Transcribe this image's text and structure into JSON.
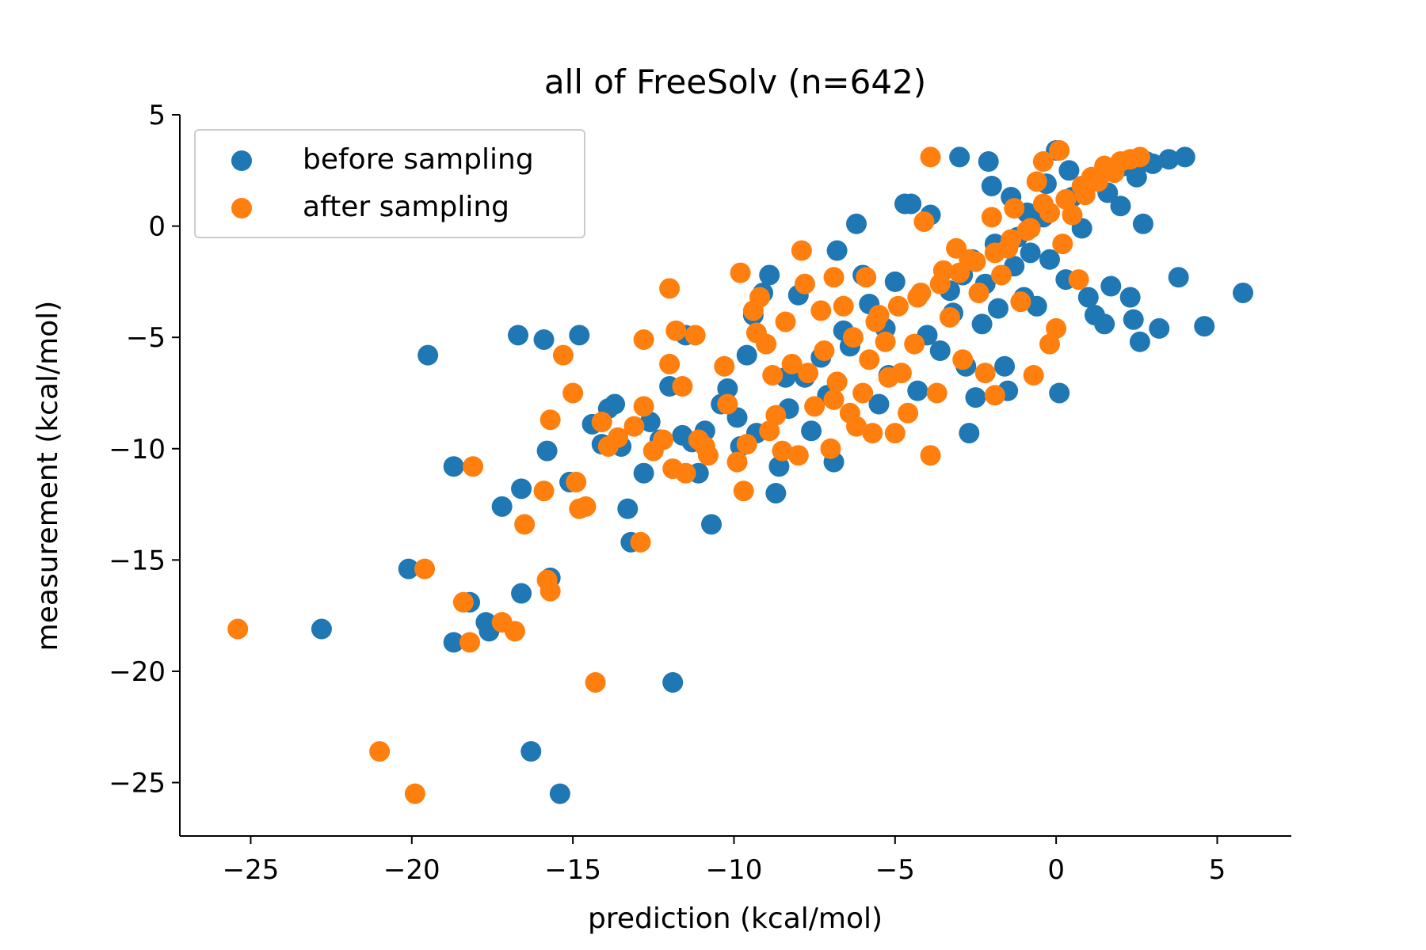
{
  "chart_data": {
    "type": "scatter",
    "title": "all of FreeSolv (n=642)",
    "xlabel": "prediction (kcal/mol)",
    "ylabel": "measurement (kcal/mol)",
    "xlim": [
      -27.2,
      7.3
    ],
    "ylim": [
      -27.4,
      5.0
    ],
    "xticks": [
      -25,
      -20,
      -15,
      -10,
      -5,
      0,
      5
    ],
    "yticks": [
      5,
      0,
      -5,
      -10,
      -15,
      -20,
      -25
    ],
    "xtick_labels": [
      "−25",
      "−20",
      "−15",
      "−10",
      "−5",
      "0",
      "5"
    ],
    "ytick_labels": [
      "5",
      "0",
      "−5",
      "−10",
      "−15",
      "−20",
      "−25"
    ],
    "grid": false,
    "legend_position": "top-left",
    "series": [
      {
        "name": "before sampling",
        "color": "#1f77b4",
        "points": [
          [
            -22.8,
            -18.1
          ],
          [
            -20.1,
            -15.4
          ],
          [
            -19.5,
            -5.8
          ],
          [
            -18.7,
            -10.8
          ],
          [
            -18.7,
            -18.7
          ],
          [
            -18.2,
            -16.9
          ],
          [
            -17.7,
            -17.8
          ],
          [
            -17.6,
            -18.2
          ],
          [
            -17.2,
            -12.6
          ],
          [
            -16.7,
            -4.9
          ],
          [
            -16.6,
            -11.8
          ],
          [
            -16.6,
            -16.5
          ],
          [
            -16.3,
            -23.6
          ],
          [
            -15.9,
            -5.1
          ],
          [
            -15.8,
            -10.1
          ],
          [
            -15.7,
            -15.8
          ],
          [
            -15.4,
            -25.5
          ],
          [
            -15.1,
            -11.5
          ],
          [
            -14.8,
            -4.9
          ],
          [
            -14.4,
            -8.9
          ],
          [
            -13.9,
            -8.2
          ],
          [
            -13.7,
            -8.0
          ],
          [
            -13.5,
            -9.9
          ],
          [
            -13.3,
            -12.7
          ],
          [
            -13.2,
            -14.2
          ],
          [
            -12.8,
            -11.1
          ],
          [
            -12.6,
            -8.8
          ],
          [
            -12.0,
            -7.2
          ],
          [
            -11.9,
            -20.5
          ],
          [
            -11.6,
            -9.4
          ],
          [
            -11.5,
            -4.9
          ],
          [
            -11.3,
            -9.7
          ],
          [
            -11.1,
            -11.1
          ],
          [
            -10.7,
            -13.4
          ],
          [
            -10.4,
            -8.0
          ],
          [
            -10.2,
            -7.3
          ],
          [
            -9.9,
            -8.6
          ],
          [
            -9.6,
            -5.8
          ],
          [
            -9.4,
            -4.0
          ],
          [
            -9.3,
            -9.3
          ],
          [
            -9.1,
            -3.0
          ],
          [
            -8.9,
            -2.2
          ],
          [
            -8.7,
            -12.0
          ],
          [
            -8.6,
            -10.8
          ],
          [
            -8.4,
            -6.8
          ],
          [
            -8.0,
            -3.1
          ],
          [
            -7.8,
            -6.8
          ],
          [
            -7.6,
            -9.2
          ],
          [
            -7.1,
            -7.6
          ],
          [
            -6.9,
            -10.6
          ],
          [
            -6.8,
            -1.1
          ],
          [
            -6.4,
            -5.4
          ],
          [
            -6.2,
            0.1
          ],
          [
            -6.0,
            -2.2
          ],
          [
            -5.8,
            -3.5
          ],
          [
            -5.5,
            -8.0
          ],
          [
            -5.3,
            -4.6
          ],
          [
            -5.2,
            -6.7
          ],
          [
            -5.0,
            -2.5
          ],
          [
            -4.7,
            1.0
          ],
          [
            -4.5,
            1.0
          ],
          [
            -4.3,
            -7.4
          ],
          [
            -4.0,
            -4.9
          ],
          [
            -3.9,
            0.5
          ],
          [
            -3.6,
            -5.6
          ],
          [
            -3.3,
            -2.9
          ],
          [
            -3.0,
            3.1
          ],
          [
            -2.8,
            -6.3
          ],
          [
            -2.7,
            -9.3
          ],
          [
            -2.5,
            -7.7
          ],
          [
            -2.3,
            -4.4
          ],
          [
            -2.1,
            2.9
          ],
          [
            -2.0,
            1.8
          ],
          [
            -1.8,
            -3.7
          ],
          [
            -1.6,
            -6.3
          ],
          [
            -1.5,
            -7.4
          ],
          [
            -1.4,
            1.3
          ],
          [
            -1.2,
            -0.5
          ],
          [
            -1.0,
            -3.2
          ],
          [
            -0.8,
            -1.2
          ],
          [
            -0.6,
            -3.6
          ],
          [
            -0.4,
            0.4
          ],
          [
            -0.2,
            -1.5
          ],
          [
            0.0,
            3.4
          ],
          [
            0.1,
            -7.5
          ],
          [
            0.3,
            -2.4
          ],
          [
            0.5,
            1.3
          ],
          [
            0.8,
            -0.1
          ],
          [
            1.0,
            -3.2
          ],
          [
            1.2,
            -4.0
          ],
          [
            1.5,
            -4.4
          ],
          [
            1.7,
            -2.7
          ],
          [
            2.0,
            0.9
          ],
          [
            2.3,
            -3.2
          ],
          [
            2.4,
            -4.2
          ],
          [
            2.5,
            2.2
          ],
          [
            2.6,
            -5.2
          ],
          [
            2.7,
            0.1
          ],
          [
            3.0,
            2.8
          ],
          [
            3.2,
            -4.6
          ],
          [
            3.5,
            3.0
          ],
          [
            3.8,
            -2.3
          ],
          [
            4.0,
            3.1
          ],
          [
            4.6,
            -4.5
          ],
          [
            5.8,
            -3.0
          ],
          [
            -3.2,
            -3.9
          ],
          [
            -2.9,
            -2.2
          ],
          [
            -2.6,
            -1.5
          ],
          [
            -2.2,
            -2.6
          ],
          [
            -1.9,
            -0.8
          ],
          [
            -1.3,
            -1.8
          ],
          [
            -0.9,
            0.6
          ],
          [
            -0.3,
            1.9
          ],
          [
            0.4,
            2.5
          ],
          [
            1.1,
            2.1
          ],
          [
            1.6,
            1.5
          ],
          [
            2.1,
            2.7
          ],
          [
            2.8,
            2.9
          ],
          [
            -6.6,
            -4.7
          ],
          [
            -7.3,
            -5.9
          ],
          [
            -8.3,
            -8.2
          ],
          [
            -9.8,
            -9.9
          ],
          [
            -10.9,
            -9.2
          ],
          [
            -12.3,
            -9.6
          ],
          [
            -14.1,
            -9.8
          ]
        ]
      },
      {
        "name": "after sampling",
        "color": "#ff7f0e",
        "points": [
          [
            -25.4,
            -18.1
          ],
          [
            -21.0,
            -23.6
          ],
          [
            -19.9,
            -25.5
          ],
          [
            -19.6,
            -15.4
          ],
          [
            -18.4,
            -16.9
          ],
          [
            -18.2,
            -18.7
          ],
          [
            -18.1,
            -10.8
          ],
          [
            -17.2,
            -17.8
          ],
          [
            -16.8,
            -18.2
          ],
          [
            -16.5,
            -13.4
          ],
          [
            -15.9,
            -11.9
          ],
          [
            -15.8,
            -15.9
          ],
          [
            -15.7,
            -8.7
          ],
          [
            -15.7,
            -16.4
          ],
          [
            -15.3,
            -5.8
          ],
          [
            -15.0,
            -7.5
          ],
          [
            -14.9,
            -11.5
          ],
          [
            -14.8,
            -12.7
          ],
          [
            -14.6,
            -12.6
          ],
          [
            -14.3,
            -20.5
          ],
          [
            -14.1,
            -8.8
          ],
          [
            -13.6,
            -9.5
          ],
          [
            -13.1,
            -9.0
          ],
          [
            -12.9,
            -14.2
          ],
          [
            -12.8,
            -5.1
          ],
          [
            -12.8,
            -8.1
          ],
          [
            -12.2,
            -9.6
          ],
          [
            -12.0,
            -6.2
          ],
          [
            -12.0,
            -2.8
          ],
          [
            -11.9,
            -10.9
          ],
          [
            -11.8,
            -4.7
          ],
          [
            -11.6,
            -7.2
          ],
          [
            -11.5,
            -11.1
          ],
          [
            -11.2,
            -4.9
          ],
          [
            -11.1,
            -9.6
          ],
          [
            -10.9,
            -9.9
          ],
          [
            -10.3,
            -6.3
          ],
          [
            -10.2,
            -8.0
          ],
          [
            -9.9,
            -10.6
          ],
          [
            -9.8,
            -2.1
          ],
          [
            -9.7,
            -11.9
          ],
          [
            -9.4,
            -3.8
          ],
          [
            -9.3,
            -4.8
          ],
          [
            -9.2,
            -3.2
          ],
          [
            -9.0,
            -5.3
          ],
          [
            -8.8,
            -6.7
          ],
          [
            -8.7,
            -8.5
          ],
          [
            -8.5,
            -10.1
          ],
          [
            -8.4,
            -4.3
          ],
          [
            -8.2,
            -6.2
          ],
          [
            -8.0,
            -10.3
          ],
          [
            -7.9,
            -1.1
          ],
          [
            -7.8,
            -2.6
          ],
          [
            -7.7,
            -6.6
          ],
          [
            -7.5,
            -8.1
          ],
          [
            -7.3,
            -3.8
          ],
          [
            -7.0,
            -10.0
          ],
          [
            -6.9,
            -2.3
          ],
          [
            -6.6,
            -3.6
          ],
          [
            -6.4,
            -8.4
          ],
          [
            -6.2,
            -9.0
          ],
          [
            -6.0,
            -7.5
          ],
          [
            -5.9,
            -2.3
          ],
          [
            -5.7,
            -9.3
          ],
          [
            -5.5,
            -4.0
          ],
          [
            -5.3,
            -5.2
          ],
          [
            -5.2,
            -6.8
          ],
          [
            -5.0,
            -9.3
          ],
          [
            -4.8,
            -6.6
          ],
          [
            -4.6,
            -8.4
          ],
          [
            -4.4,
            -5.3
          ],
          [
            -4.2,
            -3.0
          ],
          [
            -4.1,
            0.2
          ],
          [
            -3.9,
            -10.3
          ],
          [
            -3.9,
            3.1
          ],
          [
            -3.7,
            -7.5
          ],
          [
            -3.5,
            -2.0
          ],
          [
            -3.3,
            -4.1
          ],
          [
            -3.1,
            -1.0
          ],
          [
            -2.9,
            -6.0
          ],
          [
            -2.7,
            -1.5
          ],
          [
            -2.4,
            -3.0
          ],
          [
            -2.2,
            -6.6
          ],
          [
            -2.0,
            0.4
          ],
          [
            -1.9,
            -7.6
          ],
          [
            -1.7,
            -2.2
          ],
          [
            -1.5,
            -1.0
          ],
          [
            -1.3,
            0.8
          ],
          [
            -1.1,
            -3.4
          ],
          [
            -0.9,
            -0.2
          ],
          [
            -0.7,
            -6.7
          ],
          [
            -0.6,
            2.0
          ],
          [
            -0.4,
            1.0
          ],
          [
            -0.4,
            2.9
          ],
          [
            -0.2,
            -5.3
          ],
          [
            0.0,
            -4.6
          ],
          [
            0.1,
            3.4
          ],
          [
            0.2,
            -0.8
          ],
          [
            0.5,
            0.5
          ],
          [
            0.7,
            -2.4
          ],
          [
            0.9,
            1.4
          ],
          [
            1.1,
            2.2
          ],
          [
            1.3,
            2.0
          ],
          [
            1.5,
            2.7
          ],
          [
            1.8,
            2.4
          ],
          [
            2.0,
            2.9
          ],
          [
            2.3,
            3.0
          ],
          [
            2.6,
            3.1
          ],
          [
            -6.8,
            -7.0
          ],
          [
            -7.2,
            -5.6
          ],
          [
            -6.3,
            -5.0
          ],
          [
            -5.6,
            -4.3
          ],
          [
            -4.9,
            -3.6
          ],
          [
            -4.3,
            -3.2
          ],
          [
            -3.6,
            -2.6
          ],
          [
            -3.0,
            -2.1
          ],
          [
            -2.5,
            -1.6
          ],
          [
            -1.9,
            -1.2
          ],
          [
            -1.4,
            -0.6
          ],
          [
            -0.8,
            -0.1
          ],
          [
            -0.2,
            0.6
          ],
          [
            0.3,
            1.2
          ],
          [
            0.8,
            1.8
          ],
          [
            -8.9,
            -9.2
          ],
          [
            -9.6,
            -9.8
          ],
          [
            -10.8,
            -10.3
          ],
          [
            -12.5,
            -10.1
          ],
          [
            -13.9,
            -9.9
          ],
          [
            -6.9,
            -7.8
          ],
          [
            -5.8,
            -6.0
          ]
        ]
      }
    ]
  }
}
